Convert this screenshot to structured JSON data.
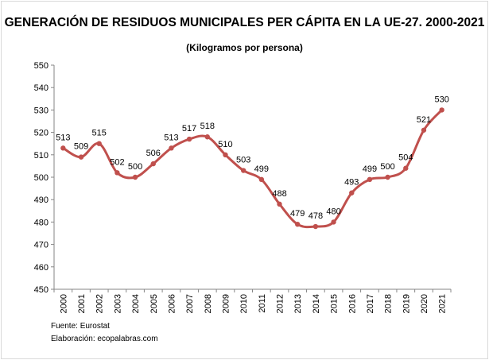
{
  "chart_data": {
    "type": "line",
    "title": "GENERACIÓN DE RESIDUOS MUNICIPALES PER CÁPITA EN LA UE-27. 2000-2021",
    "subtitle": "(Kilogramos por persona)",
    "xlabel": "",
    "ylabel": "",
    "categories": [
      "2000",
      "2001",
      "2002",
      "2003",
      "2004",
      "2005",
      "2006",
      "2007",
      "2008",
      "2009",
      "2010",
      "2011",
      "2012",
      "2013",
      "2014",
      "2015",
      "2016",
      "2017",
      "2018",
      "2019",
      "2020",
      "2021"
    ],
    "values": [
      513,
      509,
      515,
      502,
      500,
      506,
      513,
      517,
      518,
      510,
      503,
      499,
      488,
      479,
      478,
      480,
      493,
      499,
      500,
      504,
      521,
      530
    ],
    "ylim": [
      450,
      550
    ],
    "yticks": [
      450,
      460,
      470,
      480,
      490,
      500,
      510,
      520,
      530,
      540,
      550
    ],
    "grid": false,
    "smooth": true,
    "data_labels": true,
    "line_color": "#c0504d"
  },
  "footer": {
    "source": "Fuente: Eurostat",
    "elaboration": "Elaboración: ecopalabras.com"
  }
}
